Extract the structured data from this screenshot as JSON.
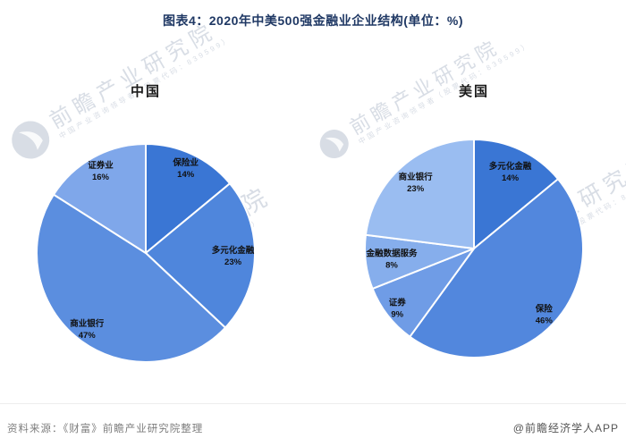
{
  "title": "图表4：2020年中美500强金融业企业结构(单位：%)",
  "footer": {
    "source": "资料来源：《财富》前瞻产业研究院整理",
    "credit": "@前瞻经济学人APP"
  },
  "watermark": {
    "brand": "前瞻产业研究院",
    "tagline": "中国产业咨询领导者（股票代码：839599）"
  },
  "colors": {
    "title_text": "#1f3864",
    "label_text": "#111111",
    "slice_border": "#ffffff",
    "source_text": "#7d7d7d",
    "credit_text": "#555555"
  },
  "chart_data": [
    {
      "type": "pie",
      "title": "中国",
      "unit": "%",
      "start_angle_deg": 0,
      "direction": "clockwise",
      "categories": [
        "保险业",
        "多元化金融",
        "商业银行",
        "证券业"
      ],
      "values": [
        14,
        23,
        47,
        16
      ],
      "colors": [
        "#3a76d4",
        "#4f86dc",
        "#5b8edf",
        "#7fa7ea"
      ],
      "label_r": [
        0.86,
        0.8,
        0.88,
        0.86
      ],
      "legend_position": "none",
      "labels_on_slices": true
    },
    {
      "type": "pie",
      "title": "美国",
      "unit": "%",
      "start_angle_deg": 0,
      "direction": "clockwise",
      "categories": [
        "多元化金融",
        "保险",
        "证券",
        "金融数据服务",
        "商业银行"
      ],
      "values": [
        14,
        46,
        9,
        8,
        23
      ],
      "colors": [
        "#3a76d4",
        "#5287dd",
        "#6f9ce6",
        "#86aeec",
        "#9abdf1"
      ],
      "label_r": [
        0.78,
        0.88,
        0.89,
        0.76,
        0.81
      ],
      "legend_position": "none",
      "labels_on_slices": true
    }
  ]
}
